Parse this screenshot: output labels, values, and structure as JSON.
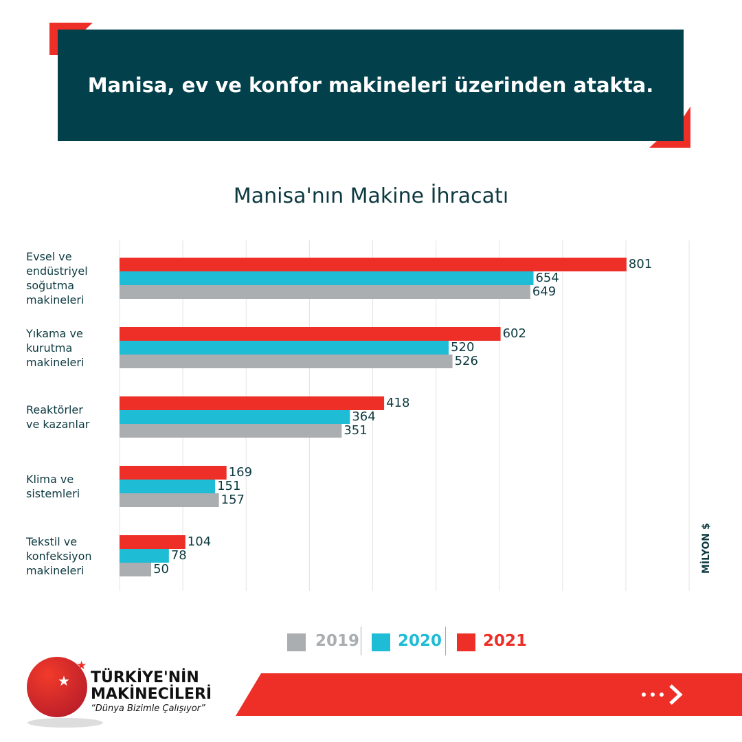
{
  "header": {
    "headline": "Manisa, ev ve konfor makineleri üzerinden atakta."
  },
  "colors": {
    "header_bg": "#02414b",
    "accent_red": "#ee2f27",
    "y2019": "#abaeb1",
    "y2020": "#1fbcd6",
    "y2021": "#ee2f27",
    "text": "#0d3a40"
  },
  "chart_data": {
    "type": "bar",
    "orientation": "horizontal",
    "title": "Manisa'nın Makine İhracatı",
    "unit_label": "MİLYON $",
    "categories": [
      [
        "Evsel ve",
        "endüstriyel",
        "soğutma",
        "makineleri"
      ],
      [
        "Yıkama ve",
        "kurutma",
        "makineleri"
      ],
      [
        "Reaktörler",
        "ve kazanlar"
      ],
      [
        "Klima ve",
        "sistemleri"
      ],
      [
        "Tekstil ve",
        "konfeksiyon",
        "makineleri"
      ]
    ],
    "series": [
      {
        "name": "2021",
        "color": "#ee2f27",
        "values": [
          801,
          602,
          418,
          169,
          104
        ]
      },
      {
        "name": "2020",
        "color": "#1fbcd6",
        "values": [
          654,
          520,
          364,
          151,
          78
        ]
      },
      {
        "name": "2019",
        "color": "#abaeb1",
        "values": [
          649,
          526,
          351,
          157,
          50
        ]
      }
    ],
    "xlim": [
      0,
      900
    ],
    "grid": true,
    "grid_step": 100,
    "legend_placement": "bottom"
  },
  "legend": [
    "2019",
    "2020",
    "2021"
  ],
  "footer": {
    "logo_line1": "TÜRKİYE'NİN",
    "logo_line2": "MAKİNECİLERİ",
    "slogan": "“Dünya Bizimle Çalışıyor”",
    "arrow_icon": "dots-chevron-right"
  }
}
